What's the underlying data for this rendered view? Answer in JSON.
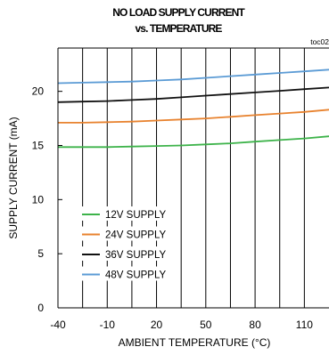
{
  "chart_data": {
    "type": "line",
    "title": "NO LOAD SUPPLY CURRENT",
    "subtitle": "vs. TEMPERATURE",
    "figure_code": "toc02",
    "xlabel": "AMBIENT TEMPERATURE (°C)",
    "ylabel": "SUPPLY CURRENT  (mA)",
    "xlim": [
      -40,
      125
    ],
    "ylim": [
      0,
      24
    ],
    "x_ticks": [
      -40,
      -10,
      20,
      50,
      80,
      110
    ],
    "y_ticks": [
      0,
      5,
      10,
      15,
      20
    ],
    "x_tick_labels": [
      "-40",
      "-10",
      "20",
      "50",
      "80",
      "110"
    ],
    "y_tick_labels": [
      "0",
      "5",
      "10",
      "15",
      "20"
    ],
    "grid": "vertical",
    "legend_position": "bottom-left",
    "series": [
      {
        "name": "12V SUPPLY",
        "color": "#3db34a",
        "x": [
          -40,
          -25,
          -10,
          5,
          20,
          35,
          50,
          65,
          80,
          95,
          110,
          125
        ],
        "y": [
          14.85,
          14.85,
          14.85,
          14.9,
          14.95,
          15.0,
          15.1,
          15.2,
          15.35,
          15.5,
          15.65,
          15.85
        ]
      },
      {
        "name": "24V SUPPLY",
        "color": "#e8822e",
        "x": [
          -40,
          -25,
          -10,
          5,
          20,
          35,
          50,
          65,
          80,
          95,
          110,
          125
        ],
        "y": [
          17.1,
          17.1,
          17.15,
          17.2,
          17.3,
          17.4,
          17.5,
          17.65,
          17.8,
          17.95,
          18.1,
          18.3
        ]
      },
      {
        "name": "36V SUPPLY",
        "color": "#111111",
        "x": [
          -40,
          -25,
          -10,
          5,
          20,
          35,
          50,
          65,
          80,
          95,
          110,
          125
        ],
        "y": [
          19.0,
          19.05,
          19.1,
          19.2,
          19.3,
          19.45,
          19.6,
          19.75,
          19.9,
          20.05,
          20.2,
          20.35
        ]
      },
      {
        "name": "48V SUPPLY",
        "color": "#5b9bd5",
        "x": [
          -40,
          -25,
          -10,
          5,
          20,
          35,
          50,
          65,
          80,
          95,
          110,
          125
        ],
        "y": [
          20.75,
          20.8,
          20.85,
          20.9,
          21.0,
          21.1,
          21.25,
          21.4,
          21.55,
          21.7,
          21.85,
          22.0
        ]
      }
    ]
  }
}
